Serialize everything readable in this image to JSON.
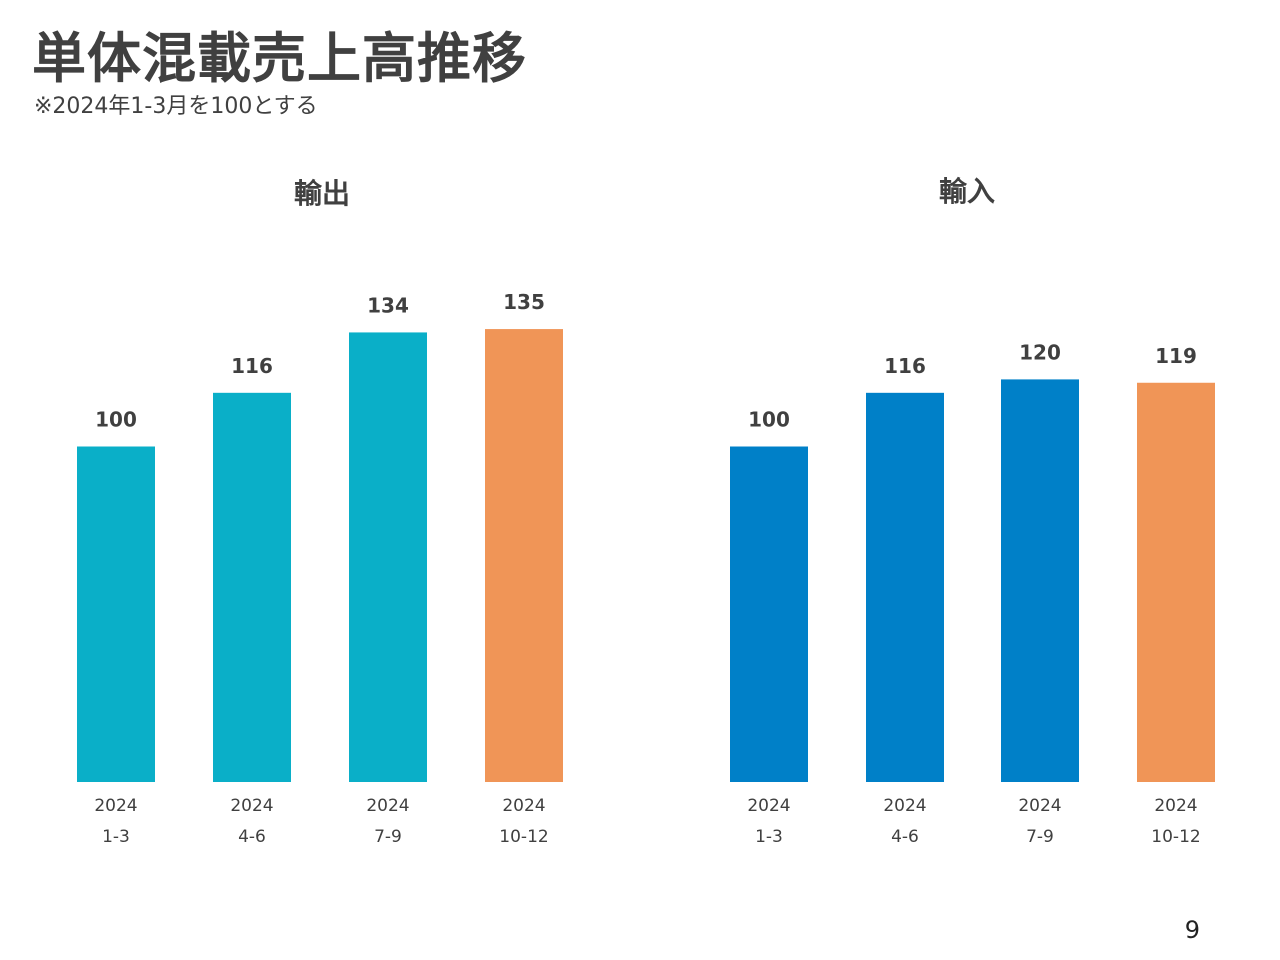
{
  "title": "単体混載売上高推移",
  "subtitle": "※2024年1-3月を100とする",
  "page_number": "9",
  "chart_data": [
    {
      "type": "bar",
      "title": "輸出",
      "categories": [
        [
          "2024",
          "1-3"
        ],
        [
          "2024",
          "4-6"
        ],
        [
          "2024",
          "7-9"
        ],
        [
          "2024",
          "10-12"
        ]
      ],
      "values": [
        100,
        116,
        134,
        135
      ],
      "data_labels": [
        "100",
        "116",
        "134",
        "135"
      ],
      "colors": [
        "#0AAFC8",
        "#0AAFC8",
        "#0AAFC8",
        "#F09557"
      ],
      "ylim": [
        0,
        135
      ],
      "grid": false,
      "legend": "none"
    },
    {
      "type": "bar",
      "title": "輸入",
      "categories": [
        [
          "2024",
          "1-3"
        ],
        [
          "2024",
          "4-6"
        ],
        [
          "2024",
          "7-9"
        ],
        [
          "2024",
          "10-12"
        ]
      ],
      "values": [
        100,
        116,
        120,
        119
      ],
      "data_labels": [
        "100",
        "116",
        "120",
        "119"
      ],
      "colors": [
        "#0080C8",
        "#0080C8",
        "#0080C8",
        "#F09557"
      ],
      "ylim": [
        0,
        135
      ],
      "grid": false,
      "legend": "none"
    }
  ]
}
